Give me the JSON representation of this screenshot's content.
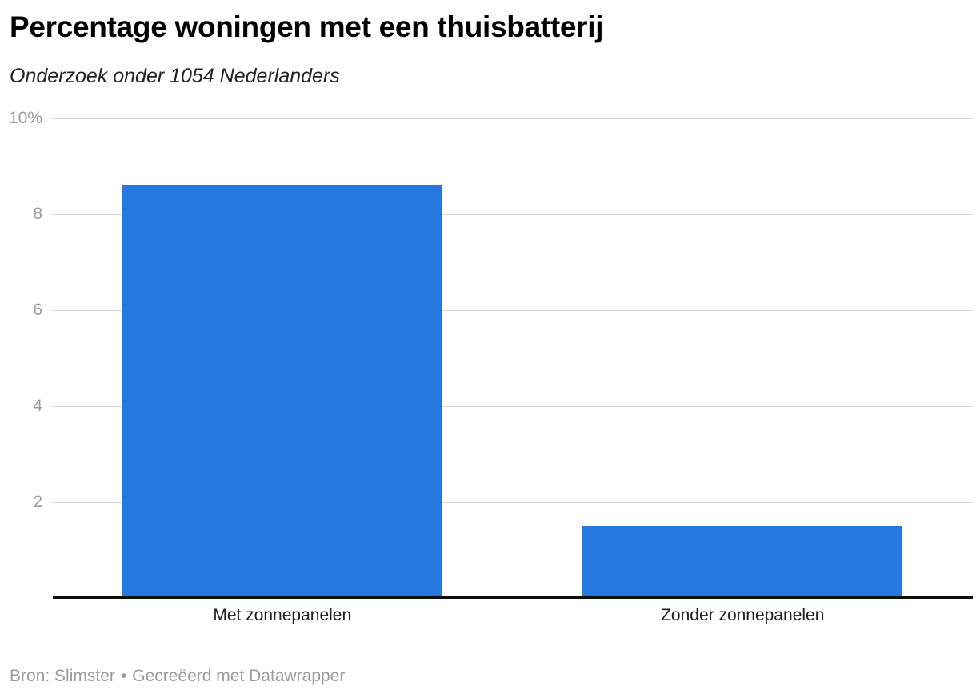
{
  "header": {
    "title": "Percentage woningen met een thuisbatterij",
    "subtitle": "Onderzoek onder 1054 Nederlanders"
  },
  "footer": {
    "source_text": "Bron: Slimster",
    "separator": "•",
    "attribution": "Gecreëerd met Datawrapper"
  },
  "chart_data": {
    "type": "bar",
    "title": "Percentage woningen met een thuisbatterij",
    "subtitle": "Onderzoek onder 1054 Nederlanders",
    "categories": [
      "Met zonnepanelen",
      "Zonder zonnepanelen"
    ],
    "values": [
      8.6,
      1.5
    ],
    "value_unit": "%",
    "xlabel": "",
    "ylabel": "",
    "ylim": [
      0,
      10
    ],
    "yticks": [
      {
        "value": 10,
        "label": "10%"
      },
      {
        "value": 8,
        "label": "8"
      },
      {
        "value": 6,
        "label": "6"
      },
      {
        "value": 4,
        "label": "4"
      },
      {
        "value": 2,
        "label": "2"
      }
    ],
    "grid": "horizontal-on",
    "legend": "none",
    "source": "Bron: Slimster",
    "attribution": "Gecreëerd met Datawrapper"
  },
  "colors": {
    "bar": "#2578DE",
    "gridline": "#D6D6D6",
    "baseline": "#0E0E0E",
    "axis_tick_label": "#9B9B9B",
    "category_label": "#1D1D1D",
    "footer_text": "#9B9B9B",
    "title_text": "#000000",
    "background": "#FFFFFF"
  }
}
